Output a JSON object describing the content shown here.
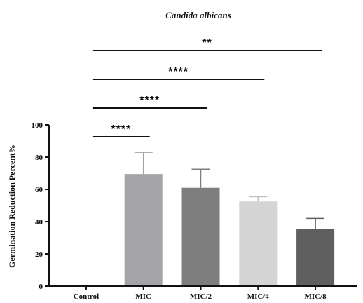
{
  "chart_data": {
    "type": "bar",
    "title": "Candida albicans",
    "xlabel": "",
    "ylabel": "Germination Reduction Percent%",
    "ylim": [
      0,
      100
    ],
    "yticks": [
      0,
      20,
      40,
      60,
      80,
      100
    ],
    "categories": [
      "Control",
      "MIC",
      "MIC/2",
      "MIC/4",
      "MIC/8"
    ],
    "values": [
      0,
      69.5,
      61,
      52.5,
      35.5
    ],
    "errors": [
      0,
      13.5,
      11.5,
      3,
      6.5
    ],
    "colors": [
      "#ffffff",
      "#a3a3a8",
      "#7e7e7e",
      "#d4d4d4",
      "#5f5f5f"
    ],
    "significance": [
      {
        "from": "Control",
        "to": "MIC/8",
        "label": "**"
      },
      {
        "from": "Control",
        "to": "MIC/4",
        "label": "****"
      },
      {
        "from": "Control",
        "to": "MIC/2",
        "label": "****"
      },
      {
        "from": "Control",
        "to": "MIC",
        "label": "****"
      }
    ]
  }
}
